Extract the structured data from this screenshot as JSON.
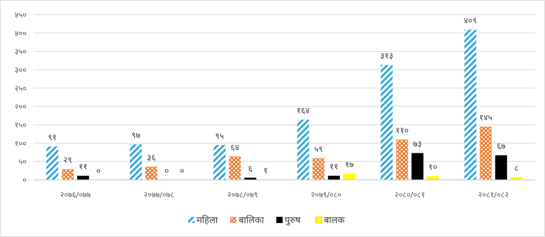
{
  "chart_data": {
    "type": "bar",
    "title": "",
    "xlabel": "",
    "ylabel": "",
    "ylim": [
      0,
      450
    ],
    "yticks": [
      0,
      50,
      100,
      150,
      200,
      250,
      300,
      350,
      400,
      450
    ],
    "ytick_labels": [
      "०",
      "५०",
      "१००",
      "१५०",
      "२००",
      "२५०",
      "३००",
      "३५०",
      "४००",
      "४५०"
    ],
    "grid": true,
    "legend_position": "bottom",
    "categories": [
      "२०७६/०७७",
      "२०७७/०७८",
      "२०७८/०७९",
      "२०७९/०८०",
      "२०८०/०८१",
      "२०८१/०८२"
    ],
    "series": [
      {
        "name": "महिला",
        "values": [
          91,
          97,
          95,
          164,
          313,
          409
        ],
        "labels": [
          "९१",
          "९७",
          "९५",
          "१६४",
          "३१३",
          "४०९"
        ],
        "color": "#33a8d8",
        "pattern": "diagonal-stripes"
      },
      {
        "name": "बालिका",
        "values": [
          29,
          36,
          64,
          59,
          110,
          145
        ],
        "labels": [
          "२९",
          "३६",
          "६४",
          "५९",
          "११०",
          "१४५"
        ],
        "color": "#ed7d31",
        "pattern": "dots"
      },
      {
        "name": "पुरुष",
        "values": [
          11,
          0,
          6,
          11,
          73,
          67
        ],
        "labels": [
          "११",
          "०",
          "६",
          "११",
          "७३",
          "६७"
        ],
        "color": "#000000",
        "pattern": "solid"
      },
      {
        "name": "बालक",
        "values": [
          0,
          0,
          1,
          17,
          10,
          8
        ],
        "labels": [
          "०",
          "०",
          "१",
          "१७",
          "१०",
          "८"
        ],
        "color": "#ffff00",
        "pattern": "solid"
      }
    ]
  }
}
